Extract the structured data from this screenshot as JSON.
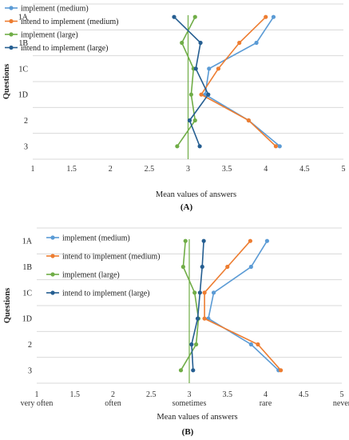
{
  "colors": {
    "implement_medium": "#5b9bd5",
    "intend_medium": "#ed7d31",
    "implement_large": "#70ad47",
    "intend_large": "#255e91",
    "grid": "#d9d9d9",
    "ref_line": "#70ad47"
  },
  "chart_data": [
    {
      "type": "line",
      "panel_label": "(A)",
      "xlabel": "Mean values of answers",
      "ylabel": "Questions",
      "xlim": [
        1,
        5
      ],
      "x_ticks": [
        "1",
        "1.5",
        "2",
        "2.5",
        "3",
        "3.5",
        "4",
        "4.5",
        "5"
      ],
      "x_category_labels": [],
      "categories": [
        "1A",
        "1B",
        "1C",
        "1D",
        "2",
        "3"
      ],
      "reference_x": 3,
      "legend_position": "top-left",
      "grid": true,
      "series": [
        {
          "name": "implement (medium)",
          "key": "implement_medium",
          "values": [
            4.1,
            3.88,
            3.27,
            3.22,
            3.78,
            4.18
          ]
        },
        {
          "name": "intend to implement (medium)",
          "key": "intend_medium",
          "values": [
            4.0,
            3.66,
            3.39,
            3.17,
            3.78,
            4.13
          ]
        },
        {
          "name": "implement (large)",
          "key": "implement_large",
          "values": [
            3.09,
            2.92,
            3.07,
            3.04,
            3.09,
            2.86
          ]
        },
        {
          "name": "intend to implement (large)",
          "key": "intend_large",
          "values": [
            2.82,
            3.16,
            3.1,
            3.26,
            3.02,
            3.15
          ]
        }
      ]
    },
    {
      "type": "line",
      "panel_label": "(B)",
      "xlabel": "Mean values of answers",
      "ylabel": "Questions",
      "xlim": [
        1,
        5
      ],
      "x_ticks": [
        "1",
        "1.5",
        "2",
        "2.5",
        "3",
        "3.5",
        "4",
        "4.5",
        "5"
      ],
      "x_category_labels": [
        {
          "at": 1,
          "label": "very often"
        },
        {
          "at": 2,
          "label": "often"
        },
        {
          "at": 3,
          "label": "sometimes"
        },
        {
          "at": 4,
          "label": "rare"
        },
        {
          "at": 5,
          "label": "never"
        }
      ],
      "categories": [
        "1A",
        "1B",
        "1C",
        "1D",
        "2",
        "3"
      ],
      "reference_x": 3,
      "legend_position": "top-left",
      "grid": true,
      "series": [
        {
          "name": "implement (medium)",
          "key": "implement_medium",
          "values": [
            4.02,
            3.81,
            3.32,
            3.25,
            3.81,
            4.17
          ]
        },
        {
          "name": "intend to implement (medium)",
          "key": "intend_medium",
          "values": [
            3.8,
            3.5,
            3.2,
            3.2,
            3.9,
            4.2
          ]
        },
        {
          "name": "implement (large)",
          "key": "implement_large",
          "values": [
            2.95,
            2.92,
            3.07,
            3.12,
            3.09,
            2.89
          ]
        },
        {
          "name": "intend to implement (large)",
          "key": "intend_large",
          "values": [
            3.19,
            3.17,
            3.14,
            3.11,
            3.03,
            3.05
          ]
        }
      ]
    }
  ]
}
